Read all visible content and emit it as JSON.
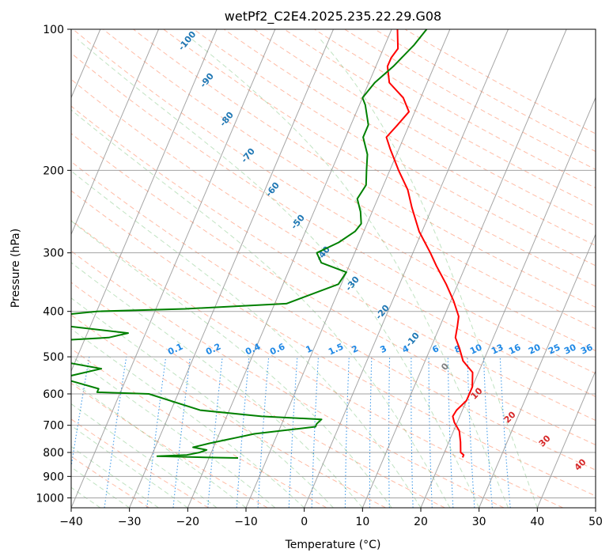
{
  "chart_data": {
    "type": "line",
    "title": "wetPf2_C2E4.2025.235.22.29.G08",
    "xlabel": "Temperature (°C)",
    "ylabel": "Pressure (hPa)",
    "xlim": [
      -40,
      50
    ],
    "ylim": [
      1050,
      100
    ],
    "y_scale": "log",
    "x_ticks": [
      "−40",
      "−30",
      "−20",
      "−10",
      "0",
      "10",
      "20",
      "30",
      "40",
      "50"
    ],
    "y_ticks": [
      "100",
      "200",
      "300",
      "400",
      "500",
      "600",
      "700",
      "800",
      "900",
      "1000"
    ],
    "grid": true,
    "skew": "skew-T log-P",
    "series": [
      {
        "color": "#ff0000",
        "points": [
          [
            23.5,
            820
          ],
          [
            23.5,
            810
          ],
          [
            22.8,
            800
          ],
          [
            22.0,
            760
          ],
          [
            21.0,
            720
          ],
          [
            19.5,
            690
          ],
          [
            18.8,
            670
          ],
          [
            19.0,
            650
          ],
          [
            20.0,
            620
          ],
          [
            20.0,
            580
          ],
          [
            19.0,
            540
          ],
          [
            16.5,
            510
          ],
          [
            15.0,
            480
          ],
          [
            13.5,
            455
          ],
          [
            13.0,
            430
          ],
          [
            12.5,
            410
          ],
          [
            10.5,
            380
          ],
          [
            8.0,
            350
          ],
          [
            5.0,
            320
          ],
          [
            3.0,
            300
          ],
          [
            -0.5,
            270
          ],
          [
            -3.5,
            240
          ],
          [
            -5.5,
            220
          ],
          [
            -8.5,
            200
          ],
          [
            -11.5,
            180
          ],
          [
            -13.0,
            170
          ],
          [
            -12.0,
            160
          ],
          [
            -11.0,
            150
          ],
          [
            -13.0,
            140
          ],
          [
            -16.5,
            130
          ],
          [
            -18.0,
            120
          ],
          [
            -18.0,
            115
          ],
          [
            -17.5,
            110
          ],
          [
            -19.0,
            100
          ]
        ]
      },
      {
        "color": "#008000",
        "points": [
          [
            -15.0,
            822
          ],
          [
            -20.0,
            820
          ],
          [
            -29.0,
            815
          ],
          [
            -24.0,
            810
          ],
          [
            -22.0,
            800
          ],
          [
            -21.0,
            790
          ],
          [
            -23.5,
            780
          ],
          [
            -21.0,
            765
          ],
          [
            -18.0,
            750
          ],
          [
            -17.0,
            745
          ],
          [
            -14.0,
            730
          ],
          [
            -4.0,
            705
          ],
          [
            -4.0,
            695
          ],
          [
            -3.5,
            680
          ],
          [
            -14.0,
            670
          ],
          [
            -25.0,
            650
          ],
          [
            -35.0,
            600
          ],
          [
            -44.0,
            595
          ],
          [
            -44.0,
            585
          ],
          [
            -50.0,
            560
          ],
          [
            -50.0,
            550
          ],
          [
            -45.0,
            530
          ],
          [
            -53.0,
            510
          ],
          [
            -62.0,
            505
          ],
          [
            -72.0,
            500
          ],
          [
            -66.0,
            470
          ],
          [
            -46.0,
            455
          ],
          [
            -43.0,
            445
          ],
          [
            -54.0,
            430
          ],
          [
            -70.0,
            425
          ],
          [
            -50.0,
            400
          ],
          [
            -35.0,
            395
          ],
          [
            -18.0,
            385
          ],
          [
            -10.5,
            350
          ],
          [
            -10.0,
            330
          ],
          [
            -15.0,
            315
          ],
          [
            -16.5,
            300
          ],
          [
            -13.5,
            285
          ],
          [
            -11.5,
            270
          ],
          [
            -11.0,
            260
          ],
          [
            -12.0,
            245
          ],
          [
            -13.5,
            230
          ],
          [
            -13.0,
            215
          ],
          [
            -14.0,
            200
          ],
          [
            -15.0,
            185
          ],
          [
            -17.0,
            170
          ],
          [
            -17.0,
            160
          ],
          [
            -19.0,
            145
          ],
          [
            -20.0,
            140
          ],
          [
            -19.0,
            130
          ],
          [
            -17.0,
            120
          ],
          [
            -15.0,
            108
          ],
          [
            -14.0,
            100
          ]
        ]
      }
    ],
    "background_lines": {
      "dry_adiabats_color": "#d0a070",
      "moist_adiabats_color": "#4caf50",
      "mixing_ratio_color": "#1e88e5",
      "isotherm_color": "#808080"
    },
    "label_sets": {
      "moist": [
        "-100",
        "-90",
        "-80",
        "-70",
        "-60",
        "-50",
        "-40",
        "-30",
        "-20",
        "-10",
        "0"
      ],
      "mixing_ratio": [
        "0.1",
        "0.2",
        "0.4",
        "0.6",
        "1",
        "1.5",
        "2",
        "3",
        "4",
        "6",
        "8",
        "10",
        "13",
        "16",
        "20",
        "25",
        "30",
        "36"
      ],
      "dry": [
        "10",
        "20",
        "30",
        "40"
      ]
    },
    "label_colors": {
      "moist": "#1f77b4",
      "mixing_ratio": "#1e88e5",
      "dry": "#d62728",
      "zero": "#808080"
    }
  }
}
